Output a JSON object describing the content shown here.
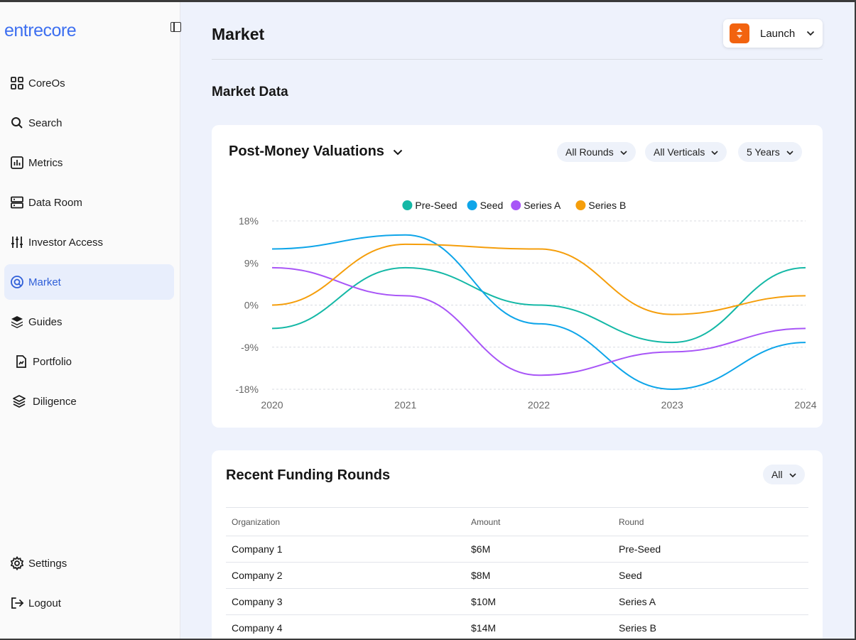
{
  "sidebar": {
    "logo": "entrecore",
    "items": [
      {
        "label": "CoreOs",
        "icon": "grid-icon"
      },
      {
        "label": "Search",
        "icon": "search-icon"
      },
      {
        "label": "Metrics",
        "icon": "bar-chart-icon"
      },
      {
        "label": "Data Room",
        "icon": "server-icon"
      },
      {
        "label": "Investor Access",
        "icon": "sliders-icon"
      },
      {
        "label": "Market",
        "icon": "target-icon",
        "active": true
      },
      {
        "label": "Guides",
        "icon": "stack-icon"
      },
      {
        "label": "Portfolio",
        "icon": "file-chart-icon"
      },
      {
        "label": "Diligence",
        "icon": "layers-icon"
      }
    ],
    "bottom_items": [
      {
        "label": "Settings",
        "icon": "gear-icon"
      },
      {
        "label": "Logout",
        "icon": "logout-icon"
      }
    ]
  },
  "header": {
    "title": "Market",
    "launch_label": "Launch"
  },
  "market_data_title": "Market Data",
  "chart_card": {
    "title": "Post-Money Valuations",
    "filters": [
      "All Rounds",
      "All Verticals",
      "5 Years"
    ]
  },
  "chart_data": {
    "type": "line",
    "x": [
      2020,
      2021,
      2022,
      2023,
      2024
    ],
    "xlabel": "",
    "ylabel": "",
    "y_ticks": [
      "18%",
      "9%",
      "0%",
      "-9%",
      "-18%"
    ],
    "ylim": [
      -18,
      18
    ],
    "grid": true,
    "legend": "top-center",
    "series": [
      {
        "name": "Pre-Seed",
        "color": "#14b8a6",
        "values": [
          -5,
          8,
          0,
          -8,
          8
        ]
      },
      {
        "name": "Seed",
        "color": "#0ea5e9",
        "values": [
          12,
          15,
          -4,
          -18,
          -8
        ]
      },
      {
        "name": "Series A",
        "color": "#a855f7",
        "values": [
          8,
          2,
          -15,
          -10,
          -5
        ]
      },
      {
        "name": "Series B",
        "color": "#f59e0b",
        "values": [
          0,
          13,
          12,
          -2,
          2
        ]
      }
    ]
  },
  "rounds": {
    "title": "Recent Funding Rounds",
    "filter": "All",
    "columns": [
      "Organization",
      "Amount",
      "Round"
    ],
    "rows": [
      [
        "Company 1",
        "$6M",
        "Pre-Seed"
      ],
      [
        "Company 2",
        "$8M",
        "Seed"
      ],
      [
        "Company 3",
        "$10M",
        "Series A"
      ],
      [
        "Company 4",
        "$14M",
        "Series B"
      ]
    ]
  }
}
